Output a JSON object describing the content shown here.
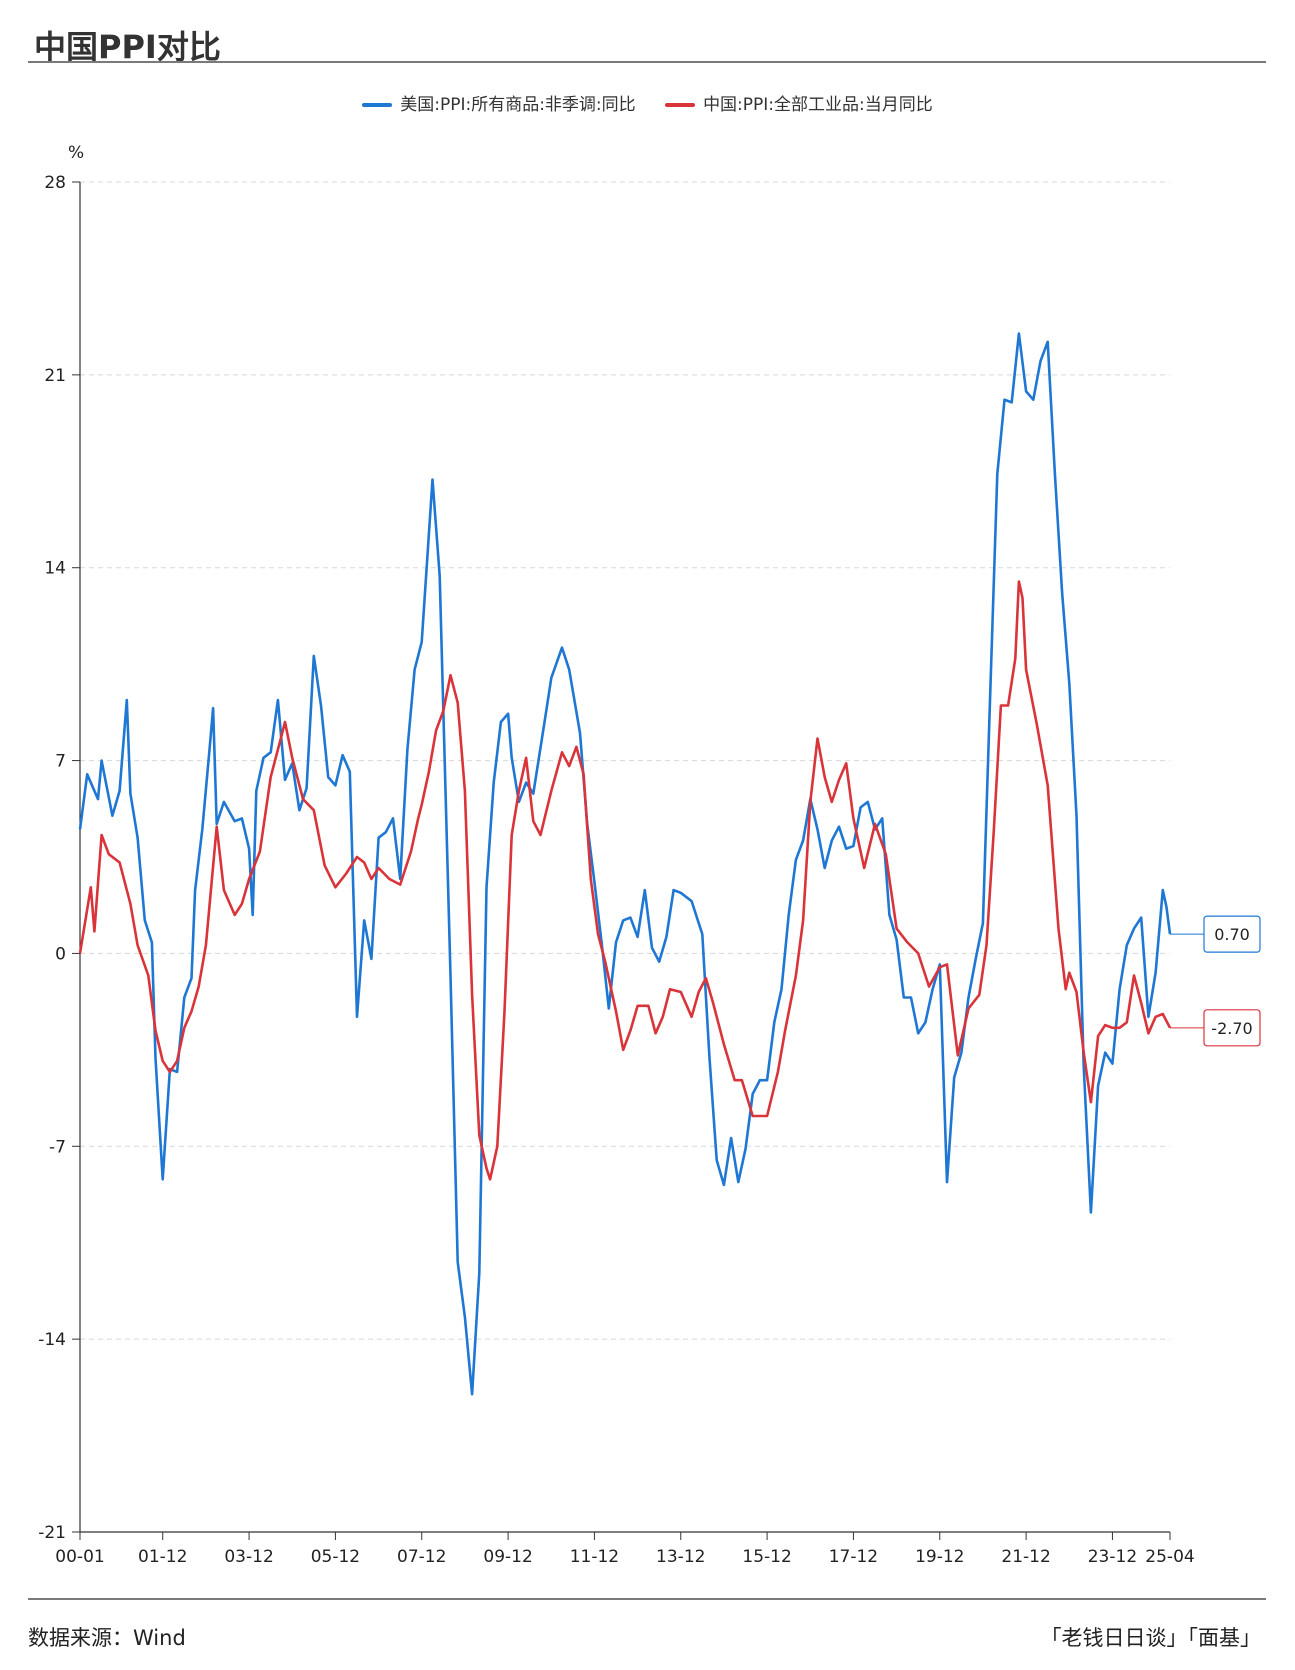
{
  "page": {
    "title": "中国PPI对比",
    "source": "数据来源：Wind",
    "brand": "「老钱日日谈」「面基」"
  },
  "colors": {
    "us": "#1f77d4",
    "cn": "#d9343a",
    "grid": "#d8d8d8",
    "axis": "#333333"
  },
  "chart_data": {
    "type": "line",
    "title": "",
    "ylabel": "%",
    "xlabel": "",
    "ylim": [
      -21,
      28
    ],
    "yticks": [
      28,
      21,
      14,
      7,
      0,
      -7,
      -14,
      -21
    ],
    "grid": "horizontal-dashed",
    "legend": "top-center",
    "xticks": [
      "00-01",
      "01-12",
      "03-12",
      "05-12",
      "07-12",
      "09-12",
      "11-12",
      "13-12",
      "15-12",
      "17-12",
      "19-12",
      "21-12",
      "23-12",
      "25-04"
    ],
    "end_labels": {
      "us": "0.70",
      "cn": "-2.70"
    },
    "series": [
      {
        "name": "美国:PPI:所有商品:非季调:同比",
        "key": "us",
        "points": [
          [
            "00-01",
            4.5
          ],
          [
            "00-03",
            6.5
          ],
          [
            "00-06",
            5.6
          ],
          [
            "00-07",
            7.0
          ],
          [
            "00-10",
            5.0
          ],
          [
            "00-12",
            5.9
          ],
          [
            "01-02",
            9.2
          ],
          [
            "01-03",
            5.8
          ],
          [
            "01-05",
            4.2
          ],
          [
            "01-07",
            1.2
          ],
          [
            "01-09",
            0.4
          ],
          [
            "01-10",
            -3.8
          ],
          [
            "01-12",
            -8.2
          ],
          [
            "02-02",
            -4.2
          ],
          [
            "02-04",
            -4.3
          ],
          [
            "02-06",
            -1.6
          ],
          [
            "02-08",
            -0.9
          ],
          [
            "02-09",
            2.3
          ],
          [
            "02-11",
            4.5
          ],
          [
            "03-01",
            7.4
          ],
          [
            "03-02",
            8.9
          ],
          [
            "03-03",
            4.7
          ],
          [
            "03-05",
            5.5
          ],
          [
            "03-08",
            4.8
          ],
          [
            "03-10",
            4.9
          ],
          [
            "03-12",
            3.8
          ],
          [
            "04-01",
            1.4
          ],
          [
            "04-02",
            5.9
          ],
          [
            "04-04",
            7.1
          ],
          [
            "04-06",
            7.3
          ],
          [
            "04-08",
            9.2
          ],
          [
            "04-10",
            6.3
          ],
          [
            "04-12",
            6.9
          ],
          [
            "05-02",
            5.2
          ],
          [
            "05-04",
            6.0
          ],
          [
            "05-06",
            10.8
          ],
          [
            "05-08",
            9.0
          ],
          [
            "05-10",
            6.4
          ],
          [
            "05-12",
            6.1
          ],
          [
            "06-02",
            7.2
          ],
          [
            "06-04",
            6.6
          ],
          [
            "06-06",
            -2.3
          ],
          [
            "06-08",
            1.2
          ],
          [
            "06-10",
            -0.2
          ],
          [
            "06-12",
            4.2
          ],
          [
            "07-02",
            4.4
          ],
          [
            "07-04",
            4.9
          ],
          [
            "07-06",
            2.7
          ],
          [
            "07-08",
            7.4
          ],
          [
            "07-10",
            10.3
          ],
          [
            "07-12",
            11.3
          ],
          [
            "08-03",
            17.2
          ],
          [
            "08-05",
            13.7
          ],
          [
            "08-08",
            -0.8
          ],
          [
            "08-10",
            -11.2
          ],
          [
            "08-12",
            -13.2
          ],
          [
            "09-02",
            -16.0
          ],
          [
            "09-04",
            -11.6
          ],
          [
            "09-06",
            2.4
          ],
          [
            "09-08",
            6.2
          ],
          [
            "09-10",
            8.4
          ],
          [
            "09-12",
            8.7
          ],
          [
            "10-01",
            7.1
          ],
          [
            "10-03",
            5.5
          ],
          [
            "10-05",
            6.2
          ],
          [
            "10-07",
            5.8
          ],
          [
            "10-10",
            8.3
          ],
          [
            "10-12",
            10.0
          ],
          [
            "11-03",
            11.1
          ],
          [
            "11-05",
            10.3
          ],
          [
            "11-08",
            8.0
          ],
          [
            "11-10",
            4.7
          ],
          [
            "11-12",
            2.6
          ],
          [
            "12-02",
            0.4
          ],
          [
            "12-04",
            -2.0
          ],
          [
            "12-06",
            0.4
          ],
          [
            "12-08",
            1.2
          ],
          [
            "12-10",
            1.3
          ],
          [
            "12-12",
            0.6
          ],
          [
            "13-02",
            2.3
          ],
          [
            "13-04",
            0.2
          ],
          [
            "13-06",
            -0.3
          ],
          [
            "13-08",
            0.6
          ],
          [
            "13-10",
            2.3
          ],
          [
            "13-12",
            2.2
          ],
          [
            "14-03",
            1.9
          ],
          [
            "14-06",
            0.7
          ],
          [
            "14-08",
            -3.8
          ],
          [
            "14-10",
            -7.5
          ],
          [
            "14-12",
            -8.4
          ],
          [
            "15-02",
            -6.7
          ],
          [
            "15-04",
            -8.3
          ],
          [
            "15-06",
            -7.1
          ],
          [
            "15-08",
            -5.1
          ],
          [
            "15-10",
            -4.6
          ],
          [
            "15-12",
            -4.6
          ],
          [
            "16-02",
            -2.5
          ],
          [
            "16-04",
            -1.3
          ],
          [
            "16-06",
            1.4
          ],
          [
            "16-08",
            3.4
          ],
          [
            "16-10",
            4.1
          ],
          [
            "16-12",
            5.6
          ],
          [
            "17-02",
            4.5
          ],
          [
            "17-04",
            3.1
          ],
          [
            "17-06",
            4.1
          ],
          [
            "17-08",
            4.6
          ],
          [
            "17-10",
            3.8
          ],
          [
            "17-12",
            3.9
          ],
          [
            "18-02",
            5.3
          ],
          [
            "18-04",
            5.5
          ],
          [
            "18-06",
            4.5
          ],
          [
            "18-08",
            4.9
          ],
          [
            "18-10",
            1.4
          ],
          [
            "18-12",
            0.5
          ],
          [
            "19-02",
            -1.6
          ],
          [
            "19-04",
            -1.6
          ],
          [
            "19-06",
            -2.9
          ],
          [
            "19-08",
            -2.5
          ],
          [
            "19-10",
            -1.3
          ],
          [
            "19-12",
            -0.4
          ],
          [
            "20-02",
            -8.3
          ],
          [
            "20-04",
            -4.5
          ],
          [
            "20-06",
            -3.6
          ],
          [
            "20-08",
            -1.6
          ],
          [
            "20-10",
            -0.2
          ],
          [
            "20-12",
            1.1
          ],
          [
            "21-02",
            9.3
          ],
          [
            "21-04",
            17.4
          ],
          [
            "21-06",
            20.1
          ],
          [
            "21-08",
            20.0
          ],
          [
            "21-10",
            22.5
          ],
          [
            "21-12",
            20.4
          ],
          [
            "22-02",
            20.1
          ],
          [
            "22-04",
            21.5
          ],
          [
            "22-06",
            22.2
          ],
          [
            "22-08",
            17.4
          ],
          [
            "22-10",
            13.1
          ],
          [
            "22-12",
            9.8
          ],
          [
            "23-02",
            5.0
          ],
          [
            "23-04",
            -4.1
          ],
          [
            "23-06",
            -9.4
          ],
          [
            "23-08",
            -4.8
          ],
          [
            "23-10",
            -3.6
          ],
          [
            "23-12",
            -4.0
          ],
          [
            "24-02",
            -1.3
          ],
          [
            "24-04",
            0.3
          ],
          [
            "24-06",
            0.9
          ],
          [
            "24-08",
            1.3
          ],
          [
            "24-10",
            -2.3
          ],
          [
            "24-12",
            -0.7
          ],
          [
            "25-02",
            2.3
          ],
          [
            "25-03",
            1.7
          ],
          [
            "25-04",
            0.7
          ]
        ]
      },
      {
        "name": "中国:PPI:全部工业品:当月同比",
        "key": "cn",
        "points": [
          [
            "00-01",
            0.0
          ],
          [
            "00-04",
            2.4
          ],
          [
            "00-05",
            0.8
          ],
          [
            "00-07",
            4.3
          ],
          [
            "00-09",
            3.6
          ],
          [
            "00-12",
            3.3
          ],
          [
            "01-03",
            1.8
          ],
          [
            "01-05",
            0.3
          ],
          [
            "01-08",
            -0.8
          ],
          [
            "01-10",
            -2.8
          ],
          [
            "01-12",
            -3.9
          ],
          [
            "02-02",
            -4.3
          ],
          [
            "02-04",
            -3.9
          ],
          [
            "02-06",
            -2.7
          ],
          [
            "02-08",
            -2.1
          ],
          [
            "02-10",
            -1.2
          ],
          [
            "02-12",
            0.3
          ],
          [
            "03-03",
            4.6
          ],
          [
            "03-05",
            2.3
          ],
          [
            "03-08",
            1.4
          ],
          [
            "03-10",
            1.8
          ],
          [
            "03-12",
            2.7
          ],
          [
            "04-03",
            3.7
          ],
          [
            "04-06",
            6.4
          ],
          [
            "04-09",
            7.9
          ],
          [
            "04-10",
            8.4
          ],
          [
            "04-12",
            7.1
          ],
          [
            "05-03",
            5.6
          ],
          [
            "05-06",
            5.2
          ],
          [
            "05-09",
            3.2
          ],
          [
            "05-12",
            2.4
          ],
          [
            "06-03",
            2.9
          ],
          [
            "06-06",
            3.5
          ],
          [
            "06-08",
            3.3
          ],
          [
            "06-10",
            2.7
          ],
          [
            "06-12",
            3.1
          ],
          [
            "07-03",
            2.7
          ],
          [
            "07-06",
            2.5
          ],
          [
            "07-09",
            3.7
          ],
          [
            "07-11",
            4.9
          ],
          [
            "07-12",
            5.4
          ],
          [
            "08-02",
            6.6
          ],
          [
            "08-04",
            8.1
          ],
          [
            "08-06",
            8.8
          ],
          [
            "08-08",
            10.1
          ],
          [
            "08-10",
            9.1
          ],
          [
            "08-12",
            5.9
          ],
          [
            "09-02",
            -1.5
          ],
          [
            "09-04",
            -6.6
          ],
          [
            "09-06",
            -7.8
          ],
          [
            "09-07",
            -8.2
          ],
          [
            "09-09",
            -7.0
          ],
          [
            "09-11",
            -2.1
          ],
          [
            "10-01",
            4.3
          ],
          [
            "10-03",
            5.9
          ],
          [
            "10-05",
            7.1
          ],
          [
            "10-07",
            4.8
          ],
          [
            "10-09",
            4.3
          ],
          [
            "10-12",
            5.9
          ],
          [
            "11-03",
            7.3
          ],
          [
            "11-05",
            6.8
          ],
          [
            "11-07",
            7.5
          ],
          [
            "11-09",
            6.5
          ],
          [
            "11-11",
            2.7
          ],
          [
            "12-01",
            0.7
          ],
          [
            "12-03",
            -0.3
          ],
          [
            "12-06",
            -2.1
          ],
          [
            "12-08",
            -3.5
          ],
          [
            "12-10",
            -2.8
          ],
          [
            "12-12",
            -1.9
          ],
          [
            "13-03",
            -1.9
          ],
          [
            "13-05",
            -2.9
          ],
          [
            "13-07",
            -2.3
          ],
          [
            "13-09",
            -1.3
          ],
          [
            "13-12",
            -1.4
          ],
          [
            "14-03",
            -2.3
          ],
          [
            "14-05",
            -1.4
          ],
          [
            "14-07",
            -0.9
          ],
          [
            "14-09",
            -1.8
          ],
          [
            "14-12",
            -3.3
          ],
          [
            "15-03",
            -4.6
          ],
          [
            "15-05",
            -4.6
          ],
          [
            "15-08",
            -5.9
          ],
          [
            "15-10",
            -5.9
          ],
          [
            "15-12",
            -5.9
          ],
          [
            "16-03",
            -4.3
          ],
          [
            "16-05",
            -2.8
          ],
          [
            "16-08",
            -0.8
          ],
          [
            "16-10",
            1.2
          ],
          [
            "16-12",
            5.5
          ],
          [
            "17-02",
            7.8
          ],
          [
            "17-04",
            6.4
          ],
          [
            "17-06",
            5.5
          ],
          [
            "17-08",
            6.3
          ],
          [
            "17-10",
            6.9
          ],
          [
            "17-12",
            4.9
          ],
          [
            "18-03",
            3.1
          ],
          [
            "18-06",
            4.7
          ],
          [
            "18-09",
            3.6
          ],
          [
            "18-12",
            0.9
          ],
          [
            "19-03",
            0.4
          ],
          [
            "19-06",
            0.0
          ],
          [
            "19-09",
            -1.2
          ],
          [
            "19-12",
            -0.5
          ],
          [
            "20-02",
            -0.4
          ],
          [
            "20-05",
            -3.7
          ],
          [
            "20-08",
            -2.0
          ],
          [
            "20-11",
            -1.5
          ],
          [
            "21-01",
            0.3
          ],
          [
            "21-03",
            4.4
          ],
          [
            "21-05",
            9.0
          ],
          [
            "21-07",
            9.0
          ],
          [
            "21-09",
            10.7
          ],
          [
            "21-10",
            13.5
          ],
          [
            "21-11",
            12.9
          ],
          [
            "21-12",
            10.3
          ],
          [
            "22-03",
            8.3
          ],
          [
            "22-06",
            6.1
          ],
          [
            "22-09",
            0.9
          ],
          [
            "22-11",
            -1.3
          ],
          [
            "22-12",
            -0.7
          ],
          [
            "23-02",
            -1.4
          ],
          [
            "23-04",
            -3.6
          ],
          [
            "23-06",
            -5.4
          ],
          [
            "23-08",
            -3.0
          ],
          [
            "23-10",
            -2.6
          ],
          [
            "23-12",
            -2.7
          ],
          [
            "24-02",
            -2.7
          ],
          [
            "24-04",
            -2.5
          ],
          [
            "24-06",
            -0.8
          ],
          [
            "24-08",
            -1.8
          ],
          [
            "24-10",
            -2.9
          ],
          [
            "24-12",
            -2.3
          ],
          [
            "25-02",
            -2.2
          ],
          [
            "25-04",
            -2.7
          ]
        ]
      }
    ]
  }
}
